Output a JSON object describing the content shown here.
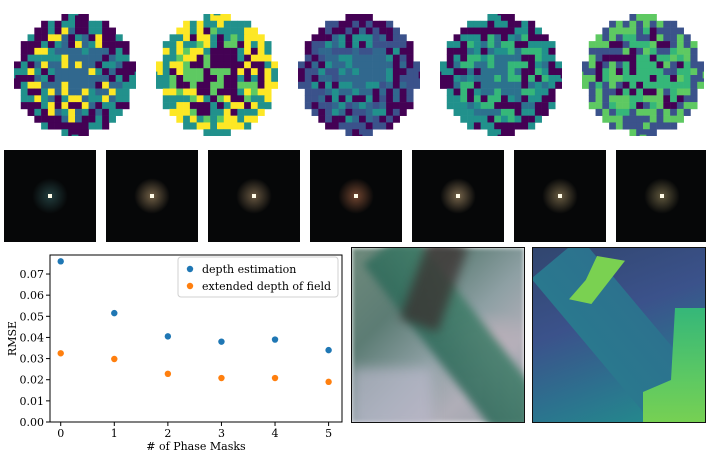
{
  "figure": {
    "phase_masks": [
      {
        "name": "mask-0",
        "colors": [
          "#440154",
          "#31688e",
          "#fde725",
          "#21918c"
        ]
      },
      {
        "name": "mask-1",
        "colors": [
          "#fde725",
          "#440154",
          "#5ec962",
          "#21918c"
        ]
      },
      {
        "name": "mask-2",
        "colors": [
          "#3b528b",
          "#31688e",
          "#21918c",
          "#440154"
        ]
      },
      {
        "name": "mask-3",
        "colors": [
          "#21918c",
          "#2c728e",
          "#35b779",
          "#440154"
        ]
      },
      {
        "name": "mask-4",
        "colors": [
          "#3b528b",
          "#35b779",
          "#440154",
          "#5ec962"
        ]
      }
    ],
    "psf_count": 7,
    "psf_tints": [
      "#3a6b6b",
      "#c8a878",
      "#b89a70",
      "#c87850",
      "#d0b080",
      "#b8a070",
      "#a89868"
    ]
  },
  "chart_data": {
    "type": "scatter",
    "xlabel": "# of Phase Masks",
    "ylabel": "RMSE",
    "xlim": [
      -0.2,
      5.25
    ],
    "ylim": [
      0.0,
      0.079
    ],
    "x_ticks": [
      "0",
      "1",
      "2",
      "3",
      "4",
      "5"
    ],
    "y_ticks": [
      "0.00",
      "0.01",
      "0.02",
      "0.03",
      "0.04",
      "0.05",
      "0.06",
      "0.07"
    ],
    "grid": false,
    "legend_position": "top-right",
    "series": [
      {
        "name": "depth estimation",
        "color": "#1f77b4",
        "x": [
          0,
          1,
          2,
          3,
          4,
          5
        ],
        "y": [
          0.076,
          0.0515,
          0.0405,
          0.038,
          0.039,
          0.034
        ]
      },
      {
        "name": "extended depth of field",
        "color": "#ff7f0e",
        "x": [
          0,
          1,
          2,
          3,
          4,
          5
        ],
        "y": [
          0.0325,
          0.0298,
          0.0228,
          0.0208,
          0.0208,
          0.019
        ]
      }
    ]
  }
}
